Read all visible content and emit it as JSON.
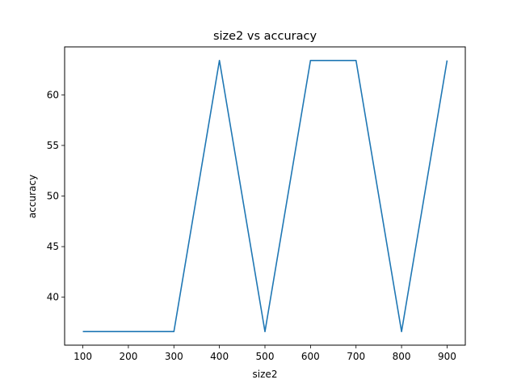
{
  "chart_data": {
    "type": "line",
    "title": "size2 vs accuracy",
    "xlabel": "size2",
    "ylabel": "accuracy",
    "x": [
      100,
      200,
      300,
      400,
      500,
      600,
      700,
      800,
      900
    ],
    "series": [
      {
        "color": "#1f77b4",
        "values": [
          36.6,
          36.6,
          36.6,
          63.4,
          36.6,
          63.4,
          63.4,
          36.6,
          63.4
        ]
      }
    ],
    "xticks": [
      "100",
      "200",
      "300",
      "400",
      "500",
      "600",
      "700",
      "800",
      "900"
    ],
    "yticks": [
      "40",
      "45",
      "50",
      "55",
      "60"
    ],
    "xlim": [
      60,
      940
    ],
    "ylim": [
      35.26,
      64.74
    ],
    "grid": false,
    "legend": false
  }
}
